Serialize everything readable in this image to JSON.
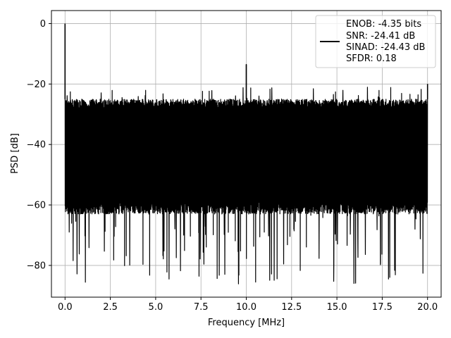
{
  "chart_data": {
    "type": "line",
    "xlabel": "Frequency [MHz]",
    "ylabel": "PSD [dB]",
    "xlim": [
      -0.75,
      20.75
    ],
    "ylim": [
      -90.5,
      4.3
    ],
    "x_ticks": [
      0.0,
      2.5,
      5.0,
      7.5,
      10.0,
      12.5,
      15.0,
      17.5,
      20.0
    ],
    "x_tick_labels": [
      "0.0",
      "2.5",
      "5.0",
      "7.5",
      "10.0",
      "12.5",
      "15.0",
      "17.5",
      "20.0"
    ],
    "y_ticks": [
      0,
      -20,
      -40,
      -60,
      -80
    ],
    "y_tick_labels": [
      "0",
      "−20",
      "−40",
      "−60",
      "−80"
    ],
    "grid": true,
    "legend_position": "top-right",
    "series": [
      {
        "name": "",
        "color": "#000000",
        "x_range": [
          0.0,
          20.0
        ],
        "noise_floor_top_db": -25,
        "noise_floor_bottom_db": -63,
        "dip_min_db": -86.5,
        "peaks": [
          {
            "x": 0.0,
            "y": 0.0
          },
          {
            "x": 10.0,
            "y": -13.5
          },
          {
            "x": 20.0,
            "y": -20.0
          }
        ]
      }
    ],
    "legend": {
      "lines": [
        "ENOB: -4.35 bits",
        "SNR: -24.41 dB",
        "SINAD: -24.43 dB",
        "SFDR: 0.18"
      ]
    }
  }
}
